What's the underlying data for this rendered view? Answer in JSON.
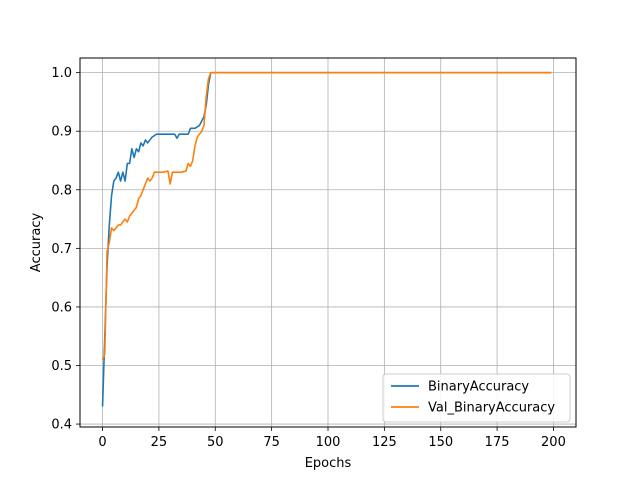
{
  "chart_data": {
    "type": "line",
    "xlabel": "Epochs",
    "ylabel": "Accuracy",
    "xlim": [
      -10,
      210
    ],
    "ylim": [
      0.395,
      1.025
    ],
    "xticks": [
      0,
      25,
      50,
      75,
      100,
      125,
      150,
      175,
      200
    ],
    "yticks": [
      0.4,
      0.5,
      0.6,
      0.7,
      0.8,
      0.9,
      1.0
    ],
    "ytick_labels": [
      "0.4",
      "0.5",
      "0.6",
      "0.7",
      "0.8",
      "0.9",
      "1.0"
    ],
    "grid": true,
    "legend_position": "lower-right",
    "series": [
      {
        "name": "BinaryAccuracy",
        "color": "#1f77b4",
        "points": [
          [
            0,
            0.43
          ],
          [
            1,
            0.55
          ],
          [
            2,
            0.67
          ],
          [
            3,
            0.74
          ],
          [
            4,
            0.79
          ],
          [
            5,
            0.815
          ],
          [
            6,
            0.82
          ],
          [
            7,
            0.83
          ],
          [
            8,
            0.815
          ],
          [
            9,
            0.83
          ],
          [
            10,
            0.815
          ],
          [
            11,
            0.845
          ],
          [
            12,
            0.845
          ],
          [
            13,
            0.87
          ],
          [
            14,
            0.855
          ],
          [
            15,
            0.87
          ],
          [
            16,
            0.865
          ],
          [
            17,
            0.88
          ],
          [
            18,
            0.875
          ],
          [
            19,
            0.885
          ],
          [
            20,
            0.88
          ],
          [
            22,
            0.89
          ],
          [
            24,
            0.895
          ],
          [
            26,
            0.895
          ],
          [
            28,
            0.895
          ],
          [
            30,
            0.895
          ],
          [
            32,
            0.895
          ],
          [
            33,
            0.888
          ],
          [
            34,
            0.895
          ],
          [
            36,
            0.895
          ],
          [
            38,
            0.895
          ],
          [
            39,
            0.905
          ],
          [
            41,
            0.905
          ],
          [
            43,
            0.91
          ],
          [
            45,
            0.925
          ],
          [
            46,
            0.945
          ],
          [
            47,
            0.98
          ],
          [
            48,
            1.0
          ],
          [
            50,
            1.0
          ],
          [
            60,
            1.0
          ],
          [
            80,
            1.0
          ],
          [
            100,
            1.0
          ],
          [
            120,
            1.0
          ],
          [
            140,
            1.0
          ],
          [
            160,
            1.0
          ],
          [
            180,
            1.0
          ],
          [
            199,
            1.0
          ]
        ]
      },
      {
        "name": "Val_BinaryAccuracy",
        "color": "#ff7f0e",
        "points": [
          [
            0,
            0.51
          ],
          [
            1,
            0.52
          ],
          [
            2,
            0.695
          ],
          [
            3,
            0.71
          ],
          [
            4,
            0.735
          ],
          [
            5,
            0.73
          ],
          [
            6,
            0.735
          ],
          [
            7,
            0.74
          ],
          [
            8,
            0.74
          ],
          [
            9,
            0.745
          ],
          [
            10,
            0.75
          ],
          [
            11,
            0.745
          ],
          [
            12,
            0.755
          ],
          [
            13,
            0.76
          ],
          [
            14,
            0.765
          ],
          [
            15,
            0.77
          ],
          [
            16,
            0.785
          ],
          [
            17,
            0.79
          ],
          [
            18,
            0.8
          ],
          [
            19,
            0.81
          ],
          [
            20,
            0.82
          ],
          [
            21,
            0.815
          ],
          [
            22,
            0.82
          ],
          [
            23,
            0.83
          ],
          [
            25,
            0.83
          ],
          [
            27,
            0.83
          ],
          [
            29,
            0.832
          ],
          [
            30,
            0.81
          ],
          [
            31,
            0.83
          ],
          [
            33,
            0.83
          ],
          [
            35,
            0.83
          ],
          [
            37,
            0.832
          ],
          [
            38,
            0.845
          ],
          [
            39,
            0.84
          ],
          [
            40,
            0.85
          ],
          [
            41,
            0.875
          ],
          [
            42,
            0.89
          ],
          [
            43,
            0.895
          ],
          [
            44,
            0.9
          ],
          [
            45,
            0.91
          ],
          [
            46,
            0.96
          ],
          [
            47,
            0.99
          ],
          [
            48,
            1.0
          ],
          [
            50,
            1.0
          ],
          [
            60,
            1.0
          ],
          [
            80,
            1.0
          ],
          [
            100,
            1.0
          ],
          [
            120,
            1.0
          ],
          [
            140,
            1.0
          ],
          [
            160,
            1.0
          ],
          [
            180,
            1.0
          ],
          [
            199,
            1.0
          ]
        ]
      }
    ]
  }
}
